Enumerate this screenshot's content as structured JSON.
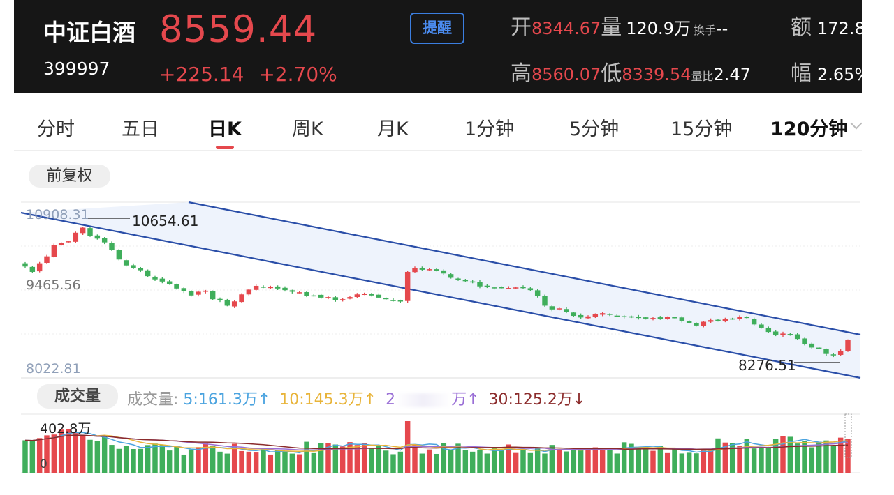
{
  "header": {
    "name": "中证白酒",
    "code": "399997",
    "price": "8559.44",
    "change": "+225.14",
    "change_pct": "+2.70%",
    "remind_label": "提醒",
    "open_label": "开",
    "open_value": "8344.67",
    "volume_label": "量",
    "volume_value": "120.9万",
    "turnover_label": "换手",
    "turnover_value": "--",
    "amount_label": "额",
    "amount_value": "172.8",
    "high_label": "高",
    "high_value": "8560.07",
    "low_label": "低",
    "low_value": "8339.54",
    "vol_ratio_label": "量比",
    "vol_ratio_value": "2.47",
    "amplitude_label": "幅",
    "amplitude_value": "2.65%"
  },
  "tabs": [
    {
      "label": "分时",
      "active": false
    },
    {
      "label": "五日",
      "active": false
    },
    {
      "label": "日K",
      "active": true
    },
    {
      "label": "周K",
      "active": false
    },
    {
      "label": "月K",
      "active": false
    },
    {
      "label": "1分钟",
      "active": false
    },
    {
      "label": "5分钟",
      "active": false
    },
    {
      "label": "15分钟",
      "active": false
    },
    {
      "label": "120分钟",
      "active": false
    }
  ],
  "adjust_label": "前复权",
  "price_axis": [
    "10908.31",
    "9465.56",
    "8022.81"
  ],
  "annotations": {
    "high": "10654.61",
    "low": "8276.51"
  },
  "volume": {
    "pill_label": "成交量",
    "legend_prefix": "成交量:",
    "ma5": "5:161.3万↑",
    "ma10": "10:145.3万↑",
    "ma20_prefix": "2",
    "ma20_suffix": "万↑",
    "ma30": "30:125.2万↓",
    "max_label": "402.8万",
    "zero_label": "0"
  },
  "colors": {
    "up": "#e5484d",
    "down": "#3fae5b",
    "channel": "#2a4ea8",
    "ma5": "#4aa3df",
    "ma10": "#e8b43a",
    "ma20": "#9a6fd6",
    "ma30": "#8b2b2b"
  },
  "chart_data": {
    "type": "candlestick",
    "ylim": [
      8022.81,
      10908.31
    ],
    "closes": [
      9930,
      9830,
      9990,
      10120,
      10330,
      10370,
      10400,
      10560,
      10654.61,
      10500,
      10450,
      10380,
      10240,
      10060,
      9950,
      9900,
      9860,
      9750,
      9690,
      9650,
      9600,
      9520,
      9470,
      9390,
      9460,
      9480,
      9320,
      9300,
      9200,
      9280,
      9410,
      9500,
      9570,
      9540,
      9550,
      9520,
      9490,
      9460,
      9450,
      9380,
      9390,
      9350,
      9360,
      9300,
      9320,
      9360,
      9410,
      9420,
      9390,
      9350,
      9320,
      9300,
      9280,
      9830,
      9900,
      9870,
      9880,
      9850,
      9800,
      9720,
      9690,
      9660,
      9640,
      9560,
      9550,
      9530,
      9540,
      9530,
      9540,
      9530,
      9490,
      9380,
      9200,
      9130,
      9150,
      9080,
      9010,
      8980,
      9000,
      9040,
      9060,
      9030,
      9010,
      8990,
      8980,
      8970,
      8960,
      8970,
      8950,
      8990,
      8980,
      8920,
      8880,
      8830,
      8900,
      8930,
      8920,
      8950,
      8960,
      8990,
      8970,
      8850,
      8790,
      8710,
      8660,
      8680,
      8660,
      8580,
      8490,
      8420,
      8400,
      8300,
      8276.51,
      8360,
      8559.44
    ]
  }
}
